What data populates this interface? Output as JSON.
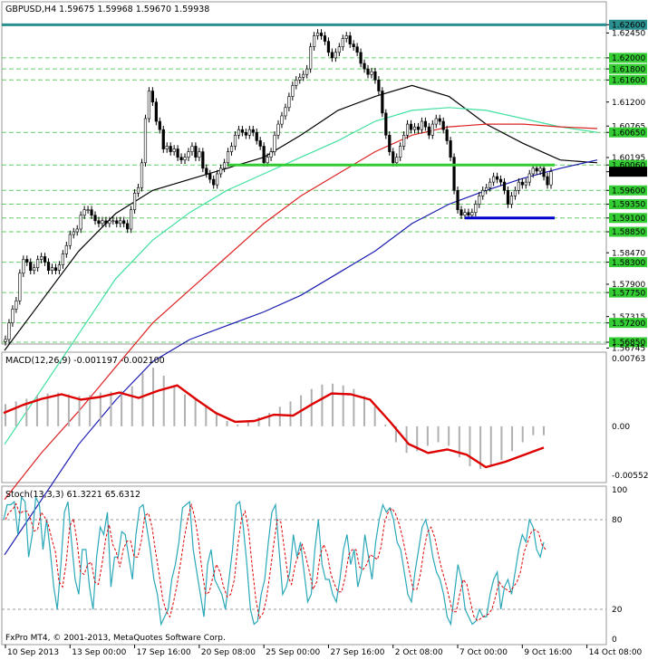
{
  "chart_data": {
    "type": "candlestick",
    "main": {
      "title": "GBPUSD,H4  1.59675 1.59968 1.59670 1.59938",
      "ylim": [
        1.5685,
        1.6272
      ],
      "price_labels": [
        {
          "text": "1.62600",
          "value": 1.626,
          "highlight": "teal"
        },
        {
          "text": "1.62450",
          "value": 1.6245
        },
        {
          "text": "1.62000",
          "value": 1.62,
          "highlight": "green"
        },
        {
          "text": "1.61800",
          "value": 1.618,
          "highlight": "green"
        },
        {
          "text": "1.61600",
          "value": 1.616,
          "highlight": "green"
        },
        {
          "text": "1.61200",
          "value": 1.612
        },
        {
          "text": "1.60765",
          "value": 1.60765
        },
        {
          "text": "1.60650",
          "value": 1.6065,
          "highlight": "green"
        },
        {
          "text": "1.60195",
          "value": 1.60195
        },
        {
          "text": "1.60060",
          "value": 1.6006,
          "highlight": "green"
        },
        {
          "text": "1.59938",
          "value": 1.59938,
          "highlight": "black"
        },
        {
          "text": "1.59600",
          "value": 1.596,
          "highlight": "green"
        },
        {
          "text": "1.59350",
          "value": 1.5935,
          "highlight": "green"
        },
        {
          "text": "1.59100",
          "value": 1.591,
          "highlight": "green"
        },
        {
          "text": "1.58850",
          "value": 1.5885,
          "highlight": "green"
        },
        {
          "text": "1.58470",
          "value": 1.5847
        },
        {
          "text": "1.58300",
          "value": 1.583,
          "highlight": "green"
        },
        {
          "text": "1.57900",
          "value": 1.579
        },
        {
          "text": "1.57750",
          "value": 1.5775,
          "highlight": "green"
        },
        {
          "text": "1.57315",
          "value": 1.57315
        },
        {
          "text": "1.57200",
          "value": 1.572,
          "highlight": "green"
        },
        {
          "text": "1.56850",
          "value": 1.5685,
          "highlight": "green"
        },
        {
          "text": "1.56745",
          "value": 1.56745
        }
      ],
      "dashed_levels": [
        1.62,
        1.618,
        1.616,
        1.6065,
        1.6006,
        1.596,
        1.5935,
        1.591,
        1.5885,
        1.583,
        1.5775,
        1.572,
        1.5685
      ],
      "resistance_line": {
        "value": 1.626,
        "color": "#2a8f8f"
      },
      "support_lines": [
        {
          "value": 1.6006,
          "from_bar": 62,
          "to_bar": 152,
          "color": "#33cc33"
        },
        {
          "value": 1.591,
          "from_bar": 128,
          "to_bar": 152,
          "color": "#0000cc"
        }
      ],
      "close": [
        1.569,
        1.572,
        1.5745,
        1.576,
        1.581,
        1.5835,
        1.583,
        1.5815,
        1.582,
        1.5835,
        1.584,
        1.583,
        1.5815,
        1.582,
        1.5815,
        1.5825,
        1.5845,
        1.586,
        1.588,
        1.5885,
        1.589,
        1.5915,
        1.5925,
        1.5925,
        1.5915,
        1.5905,
        1.59,
        1.5905,
        1.59,
        1.5905,
        1.5905,
        1.59,
        1.5905,
        1.59,
        1.589,
        1.5925,
        1.5955,
        1.5965,
        1.601,
        1.609,
        1.614,
        1.612,
        1.6085,
        1.607,
        1.6035,
        1.604,
        1.603,
        1.6035,
        1.602,
        1.6015,
        1.602,
        1.603,
        1.604,
        1.602,
        1.603,
        1.6,
        1.599,
        1.598,
        1.597,
        1.599,
        1.6,
        1.601,
        1.603,
        1.604,
        1.606,
        1.607,
        1.6065,
        1.606,
        1.607,
        1.6065,
        1.605,
        1.604,
        1.601,
        1.602,
        1.603,
        1.606,
        1.608,
        1.6095,
        1.611,
        1.613,
        1.615,
        1.616,
        1.6165,
        1.617,
        1.618,
        1.622,
        1.624,
        1.6245,
        1.624,
        1.623,
        1.621,
        1.62,
        1.621,
        1.622,
        1.6235,
        1.624,
        1.6225,
        1.622,
        1.621,
        1.619,
        1.618,
        1.617,
        1.6175,
        1.616,
        1.614,
        1.61,
        1.606,
        1.603,
        1.601,
        1.602,
        1.604,
        1.606,
        1.608,
        1.607,
        1.6075,
        1.607,
        1.6085,
        1.6075,
        1.606,
        1.608,
        1.609,
        1.6085,
        1.607,
        1.605,
        1.602,
        1.596,
        1.5925,
        1.5915,
        1.592,
        1.5915,
        1.592,
        1.5935,
        1.595,
        1.596,
        1.5965,
        1.5975,
        1.5985,
        1.598,
        1.5975,
        1.596,
        1.5935,
        1.595,
        1.596,
        1.5975,
        1.597,
        1.5975,
        1.599,
        1.6,
        1.5995,
        1.6,
        1.5985,
        1.597,
        1.5994
      ],
      "indicators": [
        {
          "color": "#000000",
          "values": [
            1.567,
            1.576,
            1.585,
            1.5918,
            1.596,
            1.598,
            1.6,
            1.602,
            1.606,
            1.6105,
            1.613,
            1.615,
            1.613,
            1.608,
            1.6045,
            1.6015,
            1.601
          ]
        },
        {
          "color": "#40e0a0",
          "values": [
            1.55,
            1.56,
            1.57,
            1.58,
            1.587,
            1.592,
            1.596,
            1.599,
            1.602,
            1.605,
            1.6085,
            1.6105,
            1.611,
            1.6105,
            1.609,
            1.6075,
            1.6065
          ]
        },
        {
          "color": "#dd2222",
          "values": [
            1.54,
            1.5485,
            1.556,
            1.564,
            1.572,
            1.578,
            1.584,
            1.59,
            1.595,
            1.599,
            1.603,
            1.606,
            1.6075,
            1.608,
            1.608,
            1.6075,
            1.6072
          ]
        },
        {
          "color": "#1a1ab0",
          "values": [
            1.53,
            1.54,
            1.55,
            1.558,
            1.565,
            1.569,
            1.5715,
            1.574,
            1.577,
            1.581,
            1.585,
            1.59,
            1.5935,
            1.596,
            1.5982,
            1.6,
            1.6015
          ]
        }
      ]
    },
    "macd": {
      "title": "MACD(12,26,9) -0.001197 -0.002100",
      "ylim": [
        -0.00552,
        0.00763
      ],
      "axis_labels": [
        {
          "text": "0.00763",
          "value": 0.00763
        },
        {
          "text": "0.00",
          "value": 0
        },
        {
          "text": "-0.00552",
          "value": -0.00552
        }
      ],
      "histogram": [
        0.0025,
        0.0028,
        0.0031,
        0.0035,
        0.0037,
        0.0038,
        0.0036,
        0.0034,
        0.0035,
        0.0038,
        0.0039,
        0.004,
        0.0045,
        0.006,
        0.0066,
        0.0057,
        0.0046,
        0.0036,
        0.003,
        0.0024,
        0.0014,
        0.0006,
        0.0002,
        0.0005,
        0.001,
        0.0015,
        0.0022,
        0.0028,
        0.0035,
        0.0042,
        0.0047,
        0.0048,
        0.0046,
        0.0042,
        0.0034,
        0.0022,
        0.0002,
        -0.0018,
        -0.003,
        -0.0028,
        -0.0022,
        -0.0018,
        -0.0022,
        -0.0035,
        -0.0045,
        -0.0048,
        -0.0044,
        -0.0038,
        -0.0028,
        -0.0018,
        -0.001,
        -0.001
      ],
      "signal": [
        0.0015,
        0.0024,
        0.0031,
        0.0036,
        0.003,
        0.0033,
        0.0038,
        0.0032,
        0.004,
        0.0046,
        0.003,
        0.0015,
        0.0005,
        0.0006,
        0.0013,
        0.0012,
        0.0025,
        0.0037,
        0.0036,
        0.003,
        0.0006,
        -0.002,
        -0.003,
        -0.0026,
        -0.0032,
        -0.0046,
        -0.004,
        -0.0032,
        -0.0024
      ]
    },
    "stochastic": {
      "title": "Stoch(13,3,3) 61.3221 65.6312",
      "ylim": [
        0,
        100
      ],
      "axis_labels": [
        {
          "text": "100",
          "value": 100
        },
        {
          "text": "80",
          "value": 80
        },
        {
          "text": "20",
          "value": 20
        },
        {
          "text": "0",
          "value": 0
        }
      ],
      "main_line": [
        80,
        90,
        90,
        92,
        70,
        95,
        92,
        55,
        70,
        95,
        90,
        60,
        80,
        60,
        35,
        20,
        50,
        85,
        92,
        65,
        40,
        30,
        60,
        60,
        35,
        20,
        55,
        75,
        70,
        85,
        35,
        55,
        55,
        72,
        70,
        55,
        40,
        70,
        88,
        90,
        75,
        60,
        40,
        30,
        10,
        15,
        20,
        40,
        50,
        65,
        88,
        90,
        92,
        60,
        45,
        30,
        15,
        50,
        60,
        40,
        35,
        30,
        20,
        40,
        60,
        90,
        92,
        75,
        50,
        20,
        10,
        12,
        30,
        40,
        65,
        85,
        90,
        60,
        30,
        35,
        45,
        70,
        55,
        65,
        45,
        25,
        30,
        60,
        80,
        50,
        40,
        40,
        30,
        25,
        40,
        60,
        70,
        50,
        60,
        35,
        45,
        70,
        55,
        40,
        65,
        80,
        90,
        85,
        88,
        80,
        65,
        60,
        45,
        30,
        25,
        45,
        60,
        75,
        80,
        70,
        55,
        45,
        40,
        30,
        15,
        10,
        30,
        50,
        40,
        20,
        15,
        10,
        12,
        20,
        15,
        15,
        30,
        40,
        45,
        20,
        35,
        40,
        30,
        45,
        60,
        70,
        65,
        80,
        75,
        60,
        55,
        65
      ],
      "signal_period": 3
    },
    "x_axis_labels": [
      {
        "text": "10 Sep 2013",
        "bar": 0
      },
      {
        "text": "13 Sep 00:00",
        "bar": 18
      },
      {
        "text": "17 Sep 16:00",
        "bar": 36
      },
      {
        "text": "20 Sep 08:00",
        "bar": 54
      },
      {
        "text": "25 Sep 00:00",
        "bar": 72
      },
      {
        "text": "27 Sep 16:00",
        "bar": 90
      },
      {
        "text": "2 Oct 08:00",
        "bar": 108
      },
      {
        "text": "7 Oct 00:00",
        "bar": 126
      },
      {
        "text": "9 Oct 16:00",
        "bar": 144
      },
      {
        "text": "14 Oct 08:00",
        "bar": 162
      }
    ],
    "copyright": "FxPro MT4, © 2001-2013, MetaQuotes Software Corp."
  }
}
